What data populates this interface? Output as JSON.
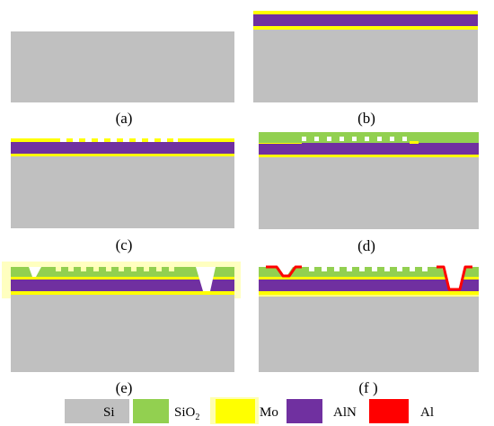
{
  "panels": [
    {
      "id": "a",
      "label": "(a)"
    },
    {
      "id": "b",
      "label": "(b)"
    },
    {
      "id": "c",
      "label": "(c)"
    },
    {
      "id": "d",
      "label": "(d)"
    },
    {
      "id": "e",
      "label": "(e)"
    },
    {
      "id": "f",
      "label": "(f )"
    }
  ],
  "legend": {
    "si": {
      "label": "Si",
      "color": "#c0c0c0"
    },
    "sio2": {
      "label": "SiO",
      "sub": "2",
      "color": "#92d050"
    },
    "mo": {
      "label": "Mo",
      "color": "#ffff00"
    },
    "aln": {
      "label": "AlN",
      "color": "#7030a0"
    },
    "al": {
      "label": "Al",
      "color": "#ff0000"
    }
  }
}
